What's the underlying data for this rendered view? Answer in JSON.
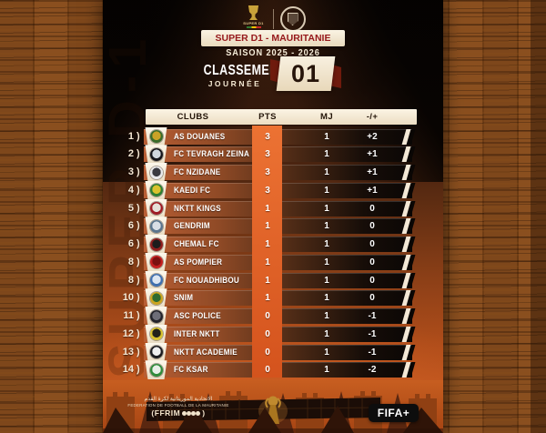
{
  "header": {
    "watermark": "SUPER D-1",
    "league_logo_text": "SUPER D1",
    "title": "SUPER D1 - MAURITANIE",
    "season": "SAISON 2025 - 2026",
    "classement_label": "CLASSEMENT",
    "journee_label": "JOURNÉE",
    "journee_number": "01"
  },
  "table": {
    "rank_bracket": ")"
  },
  "chart_data": {
    "type": "table",
    "title": "SUPER D1 - MAURITANIE — CLASSEMENT JOURNÉE 01",
    "columns": [
      "CLUBS",
      "PTS",
      "MJ",
      "-/+"
    ],
    "rows": [
      {
        "rank": "1",
        "club": "AS DOUANES",
        "pts": "3",
        "mj": "1",
        "diff": "+2",
        "crest_icon": "as-douanes-crest-icon",
        "crest_colors": [
          "#3a6b2a",
          "#c9a227"
        ]
      },
      {
        "rank": "2",
        "club": "FC TEVRAGH ZEINA",
        "pts": "3",
        "mj": "1",
        "diff": "+1",
        "crest_icon": "fc-tevragh-zeina-crest-icon",
        "crest_colors": [
          "#15151a",
          "#cfd6dd"
        ]
      },
      {
        "rank": "3",
        "club": "FC NZIDANE",
        "pts": "3",
        "mj": "1",
        "diff": "+1",
        "crest_icon": "fc-nzidane-crest-icon",
        "crest_colors": [
          "#e8e8ea",
          "#3a3a40"
        ]
      },
      {
        "rank": "4",
        "club": "KAEDI FC",
        "pts": "3",
        "mj": "1",
        "diff": "+1",
        "crest_icon": "kaedi-fc-crest-icon",
        "crest_colors": [
          "#2e7d32",
          "#d9c22e"
        ]
      },
      {
        "rank": "5",
        "club": "NKTT KINGS",
        "pts": "1",
        "mj": "1",
        "diff": "0",
        "crest_icon": "nktt-kings-crest-icon",
        "crest_colors": [
          "#9e1b24",
          "#e5e0d8"
        ]
      },
      {
        "rank": "6",
        "club": "GENDRIM",
        "pts": "1",
        "mj": "1",
        "diff": "0",
        "crest_icon": "gendrim-crest-icon",
        "crest_colors": [
          "#5a748c",
          "#d9dee6"
        ]
      },
      {
        "rank": "6",
        "club": "CHEMAL FC",
        "pts": "1",
        "mj": "1",
        "diff": "0",
        "crest_icon": "chemal-fc-crest-icon",
        "crest_colors": [
          "#8f1d1d",
          "#1c1c1c"
        ]
      },
      {
        "rank": "8",
        "club": "AS POMPIER",
        "pts": "1",
        "mj": "1",
        "diff": "0",
        "crest_icon": "as-pompier-crest-icon",
        "crest_colors": [
          "#c41f1f",
          "#7a1010"
        ]
      },
      {
        "rank": "8",
        "club": "FC NOUADHIBOU",
        "pts": "1",
        "mj": "1",
        "diff": "0",
        "crest_icon": "fc-nouadhibou-crest-icon",
        "crest_colors": [
          "#3f6fae",
          "#dce6f2"
        ]
      },
      {
        "rank": "10",
        "club": "SNIM",
        "pts": "1",
        "mj": "1",
        "diff": "0",
        "crest_icon": "snim-crest-icon",
        "crest_colors": [
          "#caa41f",
          "#2f6b2f"
        ]
      },
      {
        "rank": "11",
        "club": "ASC POLICE",
        "pts": "0",
        "mj": "1",
        "diff": "-1",
        "crest_icon": "asc-police-crest-icon",
        "crest_colors": [
          "#23232a",
          "#6e6e78"
        ]
      },
      {
        "rank": "12",
        "club": "INTER NKTT",
        "pts": "0",
        "mj": "1",
        "diff": "-1",
        "crest_icon": "inter-nktt-crest-icon",
        "crest_colors": [
          "#d8c22e",
          "#23231a"
        ]
      },
      {
        "rank": "13",
        "club": "NKTT ACADEMIE",
        "pts": "0",
        "mj": "1",
        "diff": "-1",
        "crest_icon": "nktt-academie-crest-icon",
        "crest_colors": [
          "#1b1b1f",
          "#efefef"
        ]
      },
      {
        "rank": "14",
        "club": "FC KSAR",
        "pts": "0",
        "mj": "1",
        "diff": "-2",
        "crest_icon": "fc-ksar-crest-icon",
        "crest_colors": [
          "#2f8b3a",
          "#e8f0e8"
        ]
      }
    ]
  },
  "footer": {
    "federation_name_arabic": "الاتحادية الموريتانية لكرة القدم",
    "federation_name": "FEDERATION DE FOOTBALL DE LA MAURITANIE",
    "ffrim_open": "(FFRIM",
    "ffrim_close": ")",
    "social_icons": [
      "facebook-icon",
      "twitter-icon",
      "instagram-icon",
      "youtube-icon"
    ],
    "fifa_label": "FIFA+"
  },
  "colors": {
    "accent_orange": "#e2662c",
    "cream": "#f4ead6",
    "title_red": "#96181b",
    "wood_brown": "#7c451a"
  }
}
